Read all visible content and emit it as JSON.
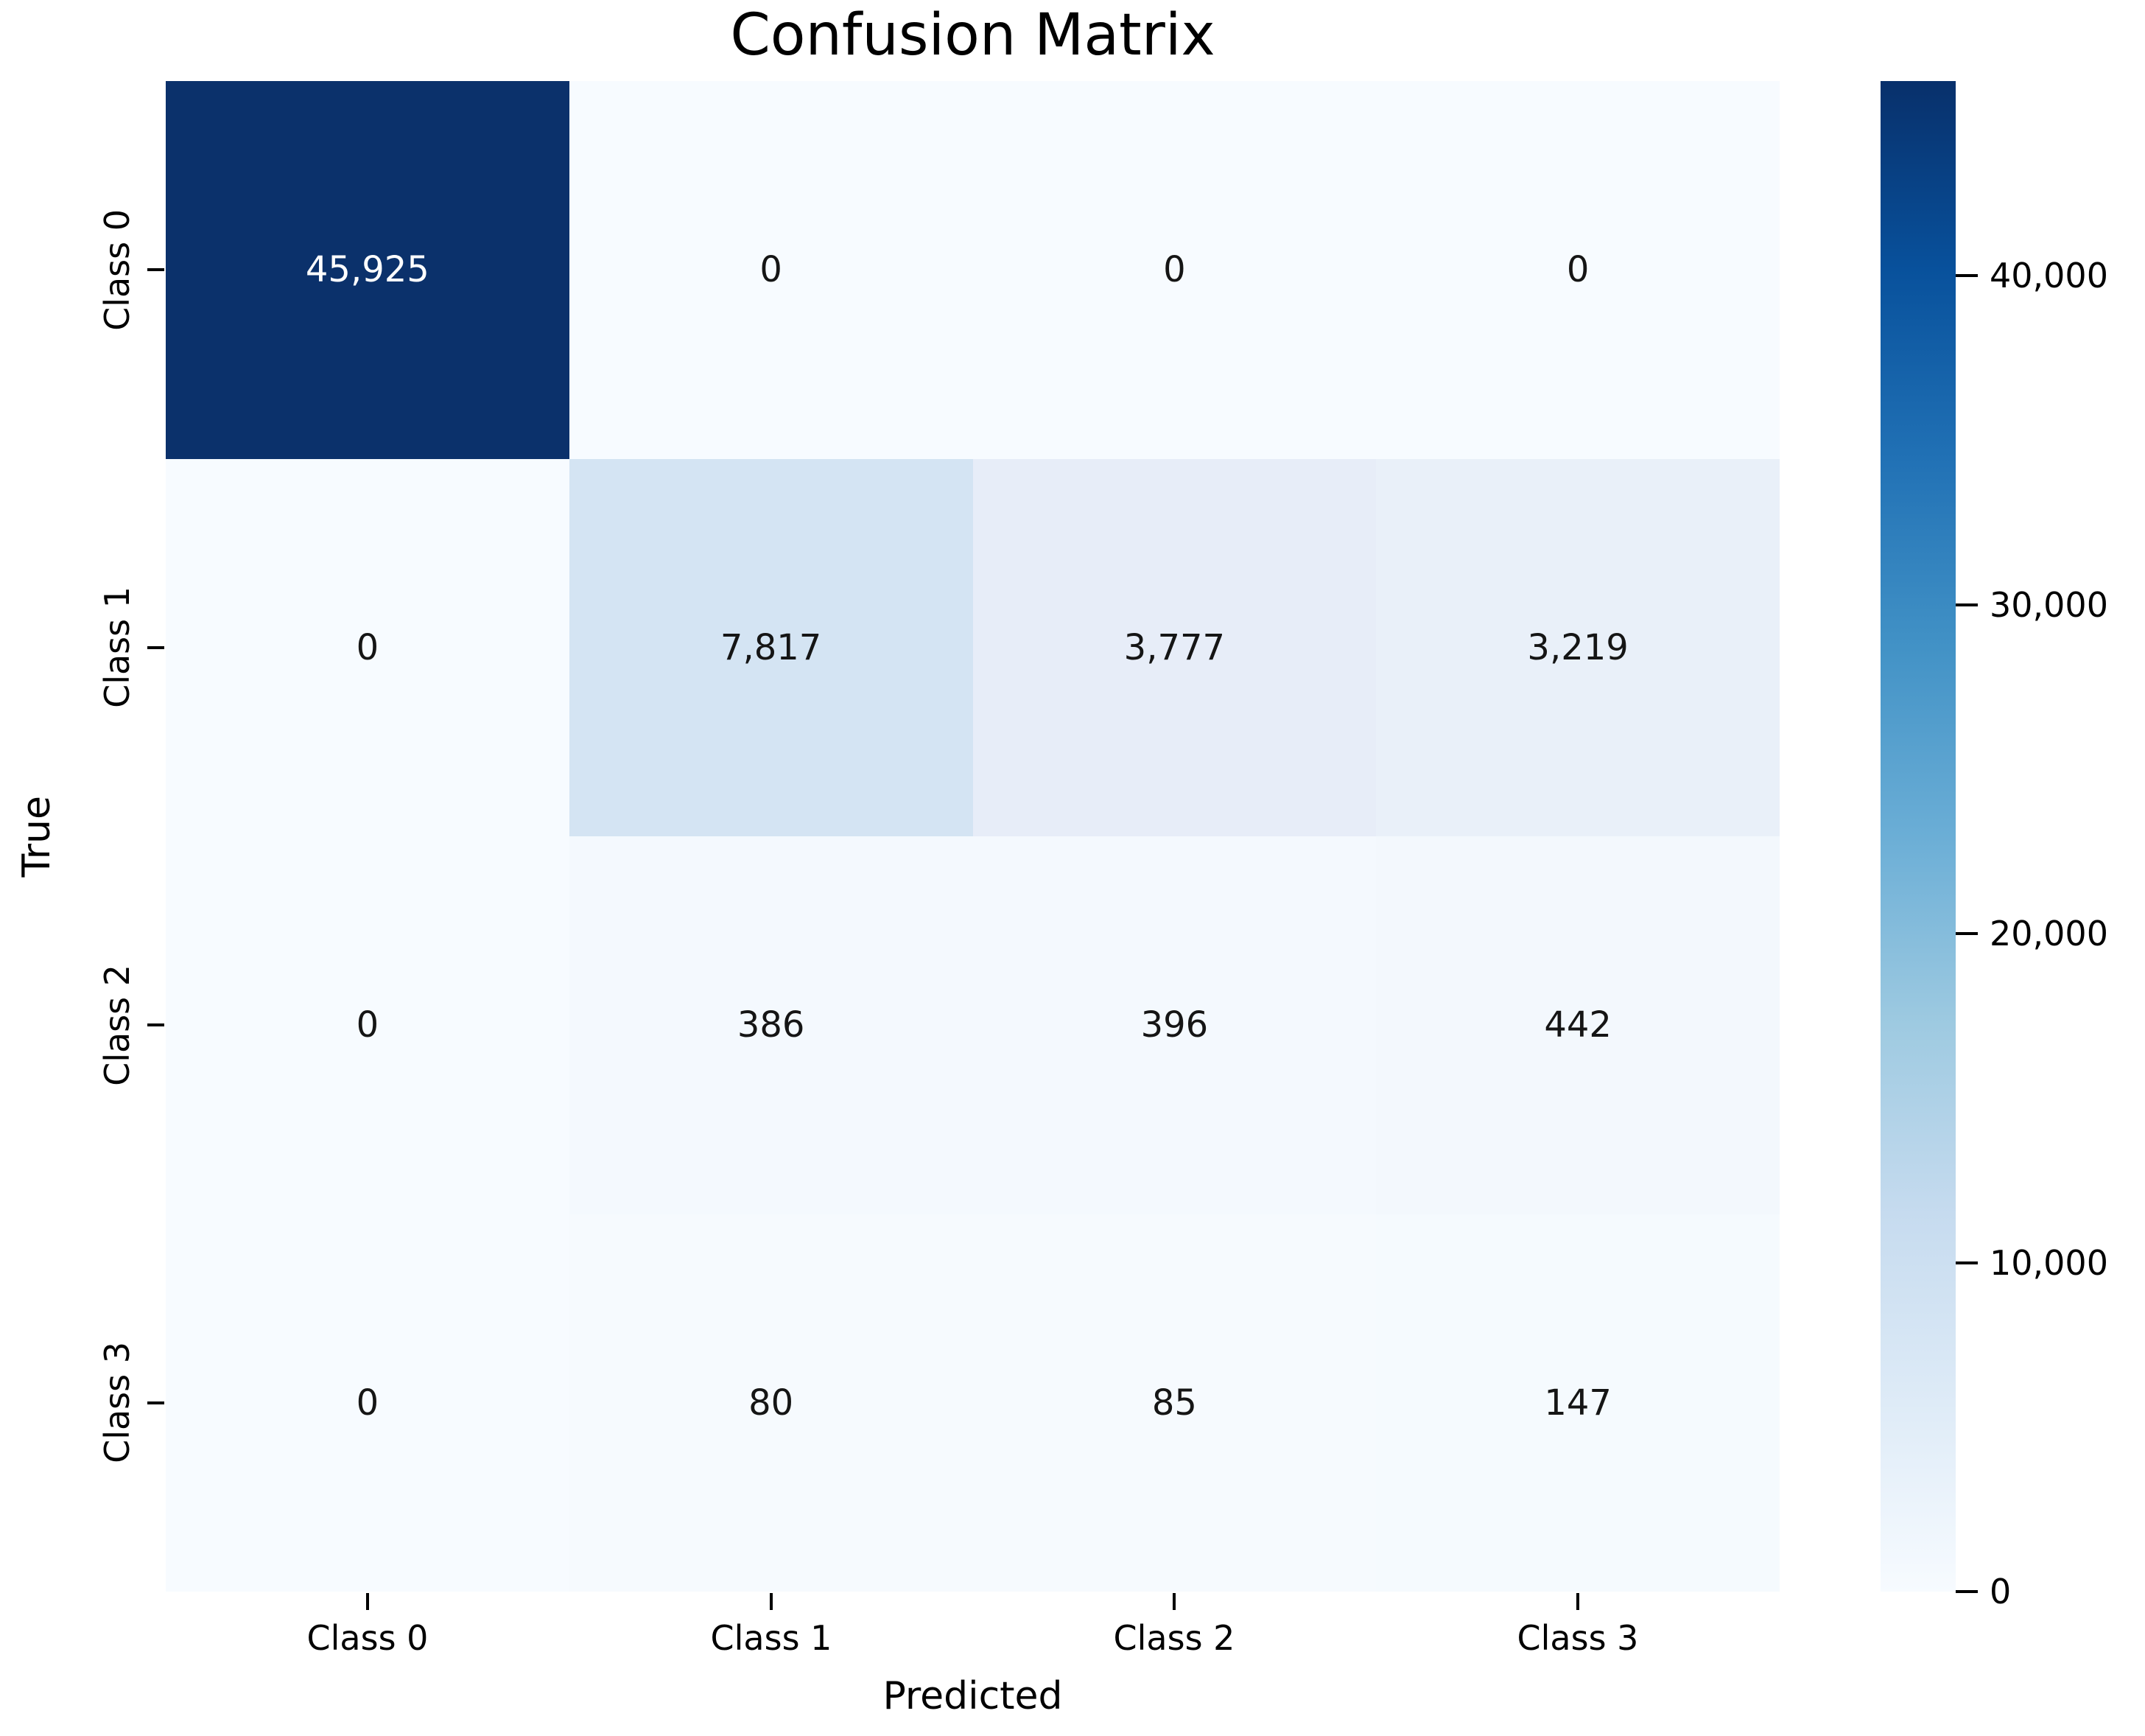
{
  "chart_data": {
    "type": "heatmap",
    "title": "Confusion Matrix",
    "xlabel": "Predicted",
    "ylabel": "True",
    "x_categories": [
      "Class 0",
      "Class 1",
      "Class 2",
      "Class 3"
    ],
    "y_categories": [
      "Class 0",
      "Class 1",
      "Class 2",
      "Class 3"
    ],
    "matrix": [
      [
        45925,
        0,
        0,
        0
      ],
      [
        0,
        7817,
        3777,
        3219
      ],
      [
        0,
        386,
        396,
        442
      ],
      [
        0,
        80,
        85,
        147
      ]
    ],
    "cell_labels": [
      [
        "45,925",
        "0",
        "0",
        "0"
      ],
      [
        "0",
        "7,817",
        "3,777",
        "3,219"
      ],
      [
        "0",
        "386",
        "396",
        "442"
      ],
      [
        "0",
        "80",
        "85",
        "147"
      ]
    ],
    "cell_colors": [
      [
        "#0b316b",
        "#f7fbff",
        "#f7fbff",
        "#f7fbff"
      ],
      [
        "#f7fbff",
        "#d4e4f3",
        "#e7edf8",
        "#e9f0f9"
      ],
      [
        "#f7fbff",
        "#f4f9fe",
        "#f4f9fe",
        "#f3f8fd"
      ],
      [
        "#f7fbff",
        "#f6fafe",
        "#f6fafe",
        "#f5fafe"
      ]
    ],
    "vmin": 0,
    "vmax": 45925,
    "colormap": "Blues",
    "grid": false,
    "legend_position": "right-colorbar",
    "colorbar": {
      "gradient_stops_bottom_to_top": [
        "#f7fbff",
        "#deebf7",
        "#c6dbef",
        "#9ecae1",
        "#6baed6",
        "#4292c6",
        "#2171b5",
        "#08519c",
        "#08306b"
      ],
      "ticks": [
        {
          "label": "40,000",
          "value": 40000
        },
        {
          "label": "30,000",
          "value": 30000
        },
        {
          "label": "20,000",
          "value": 20000
        },
        {
          "label": "10,000",
          "value": 10000
        },
        {
          "label": "0",
          "value": 0
        }
      ]
    }
  },
  "colors": {
    "annot_on_dark": "#ffffff",
    "annot_on_light": "#151515",
    "axis_text": "#000000",
    "background": "#ffffff"
  }
}
